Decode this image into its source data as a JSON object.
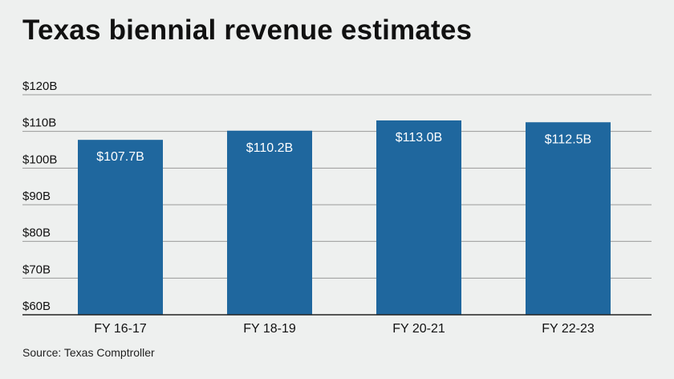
{
  "title": "Texas biennial revenue estimates",
  "source": "Source: Texas Comptroller",
  "colors": {
    "bar": "#1f679e",
    "grid": "#9a9a9a",
    "axis": "#222222",
    "background": "#eef0ef"
  },
  "chart_data": {
    "type": "bar",
    "title": "Texas biennial revenue estimates",
    "categories": [
      "FY 16-17",
      "FY 18-19",
      "FY 20-21",
      "FY 22-23"
    ],
    "values": [
      107.7,
      110.2,
      113.0,
      112.5
    ],
    "value_labels": [
      "$107.7B",
      "$110.2B",
      "$113.0B",
      "$112.5B"
    ],
    "yticks": [
      60,
      70,
      80,
      90,
      100,
      110,
      120
    ],
    "ytick_labels": [
      "$60B",
      "$70B",
      "$80B",
      "$90B",
      "$100B",
      "$110B",
      "$120B"
    ],
    "ylim": [
      60,
      120
    ],
    "xlabel": "",
    "ylabel": "",
    "grid": true,
    "legend": "none"
  }
}
